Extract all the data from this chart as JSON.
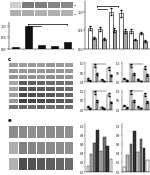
{
  "bg_color": "#ffffff",
  "panel_a": {
    "wb_bands": [
      {
        "intensities": [
          0.35,
          0.95,
          0.92,
          0.88,
          0.85
        ],
        "color_base": 0.55
      },
      {
        "intensities": [
          0.7,
          0.72,
          0.68,
          0.7,
          0.69
        ],
        "color_base": 0.45
      }
    ],
    "bar_values": [
      0.05,
      1.0,
      0.14,
      0.09,
      0.28
    ],
    "bar_color": "#111111",
    "sig_lines": [
      [
        1,
        4,
        1.06
      ],
      [
        1,
        2,
        0.98
      ]
    ]
  },
  "panel_b": {
    "bar_values_white": [
      0.55,
      0.52,
      1.0,
      0.95,
      0.48,
      0.42
    ],
    "bar_values_gray": [
      0.28,
      0.26,
      0.5,
      0.47,
      0.24,
      0.21
    ],
    "errors_white": [
      0.06,
      0.05,
      0.1,
      0.09,
      0.05,
      0.04
    ],
    "errors_gray": [
      0.03,
      0.03,
      0.05,
      0.05,
      0.02,
      0.02
    ],
    "color_white": "#ffffff",
    "color_gray": "#aaaaaa",
    "sig_lines": [
      [
        0.5,
        2.5,
        1.15
      ],
      [
        0.5,
        1.5,
        1.08
      ]
    ]
  },
  "panel_c": {
    "n_bands": 8,
    "n_lanes": 7,
    "band_intensities": [
      [
        0.55,
        0.6,
        0.58,
        0.62,
        0.57,
        0.59,
        0.56
      ],
      [
        0.4,
        0.75,
        0.72,
        0.7,
        0.68,
        0.65,
        0.63
      ],
      [
        0.38,
        0.72,
        0.7,
        0.68,
        0.66,
        0.62,
        0.6
      ],
      [
        0.36,
        0.68,
        0.66,
        0.64,
        0.62,
        0.59,
        0.57
      ],
      [
        0.35,
        0.65,
        0.63,
        0.61,
        0.59,
        0.57,
        0.55
      ],
      [
        0.42,
        0.42,
        0.43,
        0.42,
        0.44,
        0.43,
        0.42
      ],
      [
        0.4,
        0.4,
        0.41,
        0.4,
        0.42,
        0.41,
        0.4
      ],
      [
        0.38,
        0.39,
        0.4,
        0.39,
        0.41,
        0.4,
        0.39
      ]
    ]
  },
  "panel_d": {
    "subpanels": [
      {
        "values_white": [
          0.18,
          0.85,
          0.15,
          0.72
        ],
        "values_gray": [
          0.09,
          0.42,
          0.07,
          0.36
        ],
        "errors_white": [
          0.03,
          0.08,
          0.02,
          0.07
        ],
        "errors_gray": [
          0.02,
          0.04,
          0.01,
          0.04
        ]
      },
      {
        "values_white": [
          0.2,
          0.88,
          0.16,
          0.75
        ],
        "values_gray": [
          0.1,
          0.44,
          0.08,
          0.37
        ],
        "errors_white": [
          0.03,
          0.09,
          0.02,
          0.07
        ],
        "errors_gray": [
          0.02,
          0.04,
          0.01,
          0.04
        ]
      },
      {
        "values_white": [
          0.18,
          0.9,
          0.14,
          0.78
        ],
        "values_gray": [
          0.09,
          0.45,
          0.07,
          0.39
        ],
        "errors_white": [
          0.03,
          0.09,
          0.02,
          0.08
        ],
        "errors_gray": [
          0.02,
          0.04,
          0.01,
          0.04
        ]
      },
      {
        "values_white": [
          0.22,
          0.92,
          0.18,
          0.8
        ],
        "values_gray": [
          0.11,
          0.46,
          0.09,
          0.4
        ],
        "errors_white": [
          0.03,
          0.09,
          0.02,
          0.08
        ],
        "errors_gray": [
          0.02,
          0.05,
          0.01,
          0.04
        ]
      }
    ],
    "color_white": "#ffffff",
    "color_gray": "#aaaaaa"
  },
  "panel_e": {
    "n_bands": 3,
    "n_lanes": 7,
    "band_intensities": [
      [
        0.3,
        0.7,
        0.68,
        0.65,
        0.63,
        0.6,
        0.58
      ],
      [
        0.32,
        0.5,
        0.48,
        0.47,
        0.46,
        0.45,
        0.44
      ],
      [
        0.45,
        0.46,
        0.44,
        0.45,
        0.46,
        0.45,
        0.44
      ]
    ]
  },
  "panel_f": {
    "subpanels": [
      {
        "values": [
          0.12,
          0.38,
          0.62,
          0.9,
          0.45,
          0.75,
          0.55,
          0.28
        ],
        "colors": [
          "#ffffff",
          "#bbbbbb",
          "#777777",
          "#333333",
          "#bbbbbb",
          "#777777",
          "#333333",
          "#ffffff"
        ]
      },
      {
        "values": [
          0.1,
          0.35,
          0.6,
          0.88,
          0.42,
          0.72,
          0.52,
          0.25
        ],
        "colors": [
          "#ffffff",
          "#bbbbbb",
          "#777777",
          "#333333",
          "#bbbbbb",
          "#777777",
          "#333333",
          "#ffffff"
        ]
      }
    ]
  }
}
